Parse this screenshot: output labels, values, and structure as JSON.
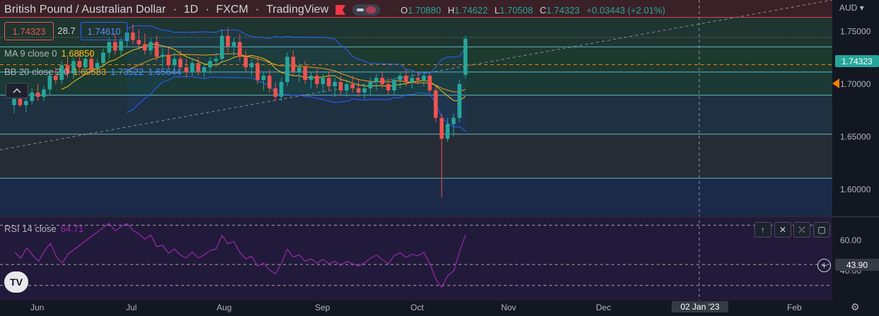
{
  "header": {
    "symbol": "British Pound / Australian Dollar",
    "interval": "1D",
    "exchange": "FXCM",
    "source": "TradingView",
    "open_label": "O",
    "open": "1.70880",
    "high_label": "H",
    "high": "1.74622",
    "low_label": "L",
    "low": "1.70508",
    "close_label": "C",
    "close": "1.74323",
    "change": "+0.03443 (+2.01%)"
  },
  "quote_boxes": {
    "sell": "1.74323",
    "spread": "28.7",
    "buy": "1.74610"
  },
  "indicators": {
    "ma_label": "MA 9 close 0",
    "ma_value": "1.68850",
    "bb_label": "BB 20 close 2 0",
    "bb_basis": "1.69583",
    "bb_upper": "1.73522",
    "bb_lower": "1.65644"
  },
  "rsi": {
    "label": "RSI 14 close",
    "value": "64.71",
    "axis_labels": [
      "60.00",
      "40.00"
    ],
    "crosshair_value": "43.90"
  },
  "price_axis": {
    "currency": "AUD",
    "current_price_tag": "1.74323"
  },
  "crosshair_date_label": "02 Jan '23",
  "colors": {
    "up": "#26a69a",
    "down": "#ef5350",
    "ma": "#f5c518",
    "bb_basis": "#f59c1a",
    "bb_bands": "#2962ff",
    "rsi": "#9c27b0",
    "current_price": "#f57c00"
  },
  "icons": {
    "flag": "flag-icon",
    "visibility": "eye-toggle-icon",
    "collapse": "chevron-up-icon",
    "rsi_controls": [
      "arrow-up-icon",
      "close-icon",
      "collapse-icon",
      "maximize-icon"
    ],
    "crosshair_add": "plus-circle-icon",
    "settings": "gear-icon",
    "logo": "tradingview-logo-icon"
  },
  "chart_data": {
    "type": "candlestick",
    "price_ylim": [
      1.575,
      1.78
    ],
    "price_ticks": [
      "1.75000",
      "1.70000",
      "1.65000",
      "1.60000"
    ],
    "x_tick_labels": [
      "Jun",
      "Jul",
      "Aug",
      "Sep",
      "Oct",
      "Nov",
      "Dec",
      "Feb"
    ],
    "horizontal_levels": [
      1.7635,
      1.7355,
      1.7115,
      1.6895,
      1.6525,
      1.6105
    ],
    "dashed_level": 1.7185,
    "candles": [
      [
        1.68,
        1.69,
        1.672,
        1.686
      ],
      [
        1.686,
        1.694,
        1.678,
        1.68
      ],
      [
        1.68,
        1.688,
        1.673,
        1.684
      ],
      [
        1.684,
        1.696,
        1.68,
        1.692
      ],
      [
        1.692,
        1.7,
        1.684,
        1.688
      ],
      [
        1.688,
        1.698,
        1.684,
        1.695
      ],
      [
        1.695,
        1.712,
        1.69,
        1.708
      ],
      [
        1.708,
        1.716,
        1.7,
        1.704
      ],
      [
        1.704,
        1.722,
        1.7,
        1.718
      ],
      [
        1.718,
        1.726,
        1.706,
        1.71
      ],
      [
        1.71,
        1.726,
        1.705,
        1.722
      ],
      [
        1.722,
        1.732,
        1.712,
        1.716
      ],
      [
        1.716,
        1.728,
        1.71,
        1.724
      ],
      [
        1.724,
        1.732,
        1.712,
        1.714
      ],
      [
        1.714,
        1.724,
        1.708,
        1.72
      ],
      [
        1.72,
        1.734,
        1.716,
        1.73
      ],
      [
        1.73,
        1.744,
        1.724,
        1.74
      ],
      [
        1.74,
        1.748,
        1.728,
        1.732
      ],
      [
        1.732,
        1.744,
        1.726,
        1.741
      ],
      [
        1.741,
        1.754,
        1.735,
        1.749
      ],
      [
        1.749,
        1.757,
        1.738,
        1.742
      ],
      [
        1.742,
        1.752,
        1.734,
        1.738
      ],
      [
        1.738,
        1.748,
        1.728,
        1.732
      ],
      [
        1.732,
        1.744,
        1.728,
        1.74
      ],
      [
        1.74,
        1.746,
        1.722,
        1.726
      ],
      [
        1.726,
        1.734,
        1.716,
        1.728
      ],
      [
        1.728,
        1.736,
        1.714,
        1.718
      ],
      [
        1.718,
        1.73,
        1.712,
        1.724
      ],
      [
        1.724,
        1.732,
        1.714,
        1.716
      ],
      [
        1.716,
        1.724,
        1.706,
        1.712
      ],
      [
        1.712,
        1.724,
        1.708,
        1.72
      ],
      [
        1.72,
        1.726,
        1.708,
        1.712
      ],
      [
        1.712,
        1.72,
        1.706,
        1.716
      ],
      [
        1.716,
        1.726,
        1.71,
        1.722
      ],
      [
        1.722,
        1.73,
        1.716,
        1.724
      ],
      [
        1.724,
        1.752,
        1.72,
        1.746
      ],
      [
        1.746,
        1.754,
        1.73,
        1.736
      ],
      [
        1.736,
        1.744,
        1.726,
        1.74
      ],
      [
        1.74,
        1.748,
        1.722,
        1.726
      ],
      [
        1.726,
        1.732,
        1.712,
        1.716
      ],
      [
        1.716,
        1.724,
        1.708,
        1.72
      ],
      [
        1.72,
        1.726,
        1.7,
        1.704
      ],
      [
        1.704,
        1.712,
        1.694,
        1.708
      ],
      [
        1.708,
        1.714,
        1.692,
        1.696
      ],
      [
        1.696,
        1.702,
        1.684,
        1.688
      ],
      [
        1.688,
        1.706,
        1.684,
        1.702
      ],
      [
        1.702,
        1.73,
        1.698,
        1.726
      ],
      [
        1.726,
        1.732,
        1.708,
        1.712
      ],
      [
        1.712,
        1.72,
        1.702,
        1.716
      ],
      [
        1.716,
        1.722,
        1.7,
        1.704
      ],
      [
        1.704,
        1.712,
        1.696,
        1.708
      ],
      [
        1.708,
        1.714,
        1.696,
        1.7
      ],
      [
        1.7,
        1.71,
        1.692,
        1.706
      ],
      [
        1.706,
        1.712,
        1.694,
        1.698
      ],
      [
        1.698,
        1.706,
        1.688,
        1.702
      ],
      [
        1.702,
        1.708,
        1.69,
        1.694
      ],
      [
        1.694,
        1.704,
        1.688,
        1.7
      ],
      [
        1.7,
        1.708,
        1.692,
        1.696
      ],
      [
        1.696,
        1.704,
        1.688,
        1.692
      ],
      [
        1.692,
        1.7,
        1.686,
        1.696
      ],
      [
        1.696,
        1.706,
        1.69,
        1.702
      ],
      [
        1.702,
        1.71,
        1.694,
        1.706
      ],
      [
        1.706,
        1.712,
        1.696,
        1.7
      ],
      [
        1.7,
        1.706,
        1.69,
        1.694
      ],
      [
        1.694,
        1.706,
        1.69,
        1.704
      ],
      [
        1.704,
        1.712,
        1.696,
        1.708
      ],
      [
        1.708,
        1.714,
        1.698,
        1.702
      ],
      [
        1.702,
        1.71,
        1.696,
        1.706
      ],
      [
        1.706,
        1.712,
        1.7,
        1.704
      ],
      [
        1.704,
        1.712,
        1.698,
        1.708
      ],
      [
        1.708,
        1.71,
        1.692,
        1.694
      ],
      [
        1.694,
        1.698,
        1.664,
        1.668
      ],
      [
        1.668,
        1.672,
        1.592,
        1.648
      ],
      [
        1.648,
        1.668,
        1.645,
        1.662
      ],
      [
        1.662,
        1.672,
        1.65,
        1.668
      ],
      [
        1.668,
        1.704,
        1.664,
        1.7
      ],
      [
        1.7088,
        1.74622,
        1.70508,
        1.74323
      ]
    ]
  }
}
